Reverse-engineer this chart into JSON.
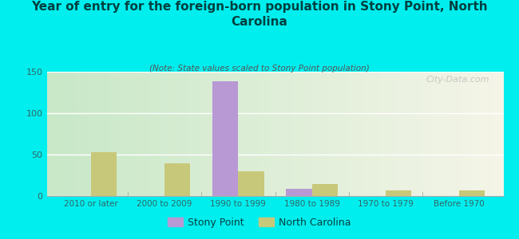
{
  "title": "Year of entry for the foreign-born population in Stony Point, North\nCarolina",
  "subtitle": "(Note: State values scaled to Stony Point population)",
  "categories": [
    "2010 or later",
    "2000 to 2009",
    "1990 to 1999",
    "1980 to 1989",
    "1970 to 1979",
    "Before 1970"
  ],
  "stony_point_values": [
    0,
    0,
    138,
    9,
    0,
    0
  ],
  "north_carolina_values": [
    53,
    39,
    30,
    14,
    7,
    7
  ],
  "stony_point_color": "#b899d4",
  "north_carolina_color": "#c8c87a",
  "background_color": "#00eeee",
  "plot_bg_left": "#c8e8c8",
  "plot_bg_right": "#f5f5e8",
  "ylim": [
    0,
    150
  ],
  "yticks": [
    0,
    50,
    100,
    150
  ],
  "bar_width": 0.35,
  "watermark": "City-Data.com",
  "legend_stony": "Stony Point",
  "legend_nc": "North Carolina",
  "title_color": "#004040",
  "subtitle_color": "#555555",
  "tick_color": "#336666"
}
